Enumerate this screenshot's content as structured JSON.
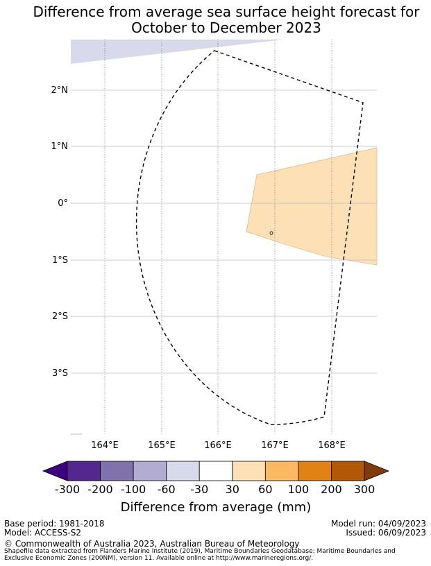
{
  "title": {
    "line1": "Difference from average sea surface height forecast for",
    "line2": "October to December 2023"
  },
  "map": {
    "lat_labels": [
      "2°N",
      "1°N",
      "0°",
      "1°S",
      "2°S",
      "3°S"
    ],
    "lon_labels": [
      "164°E",
      "165°E",
      "166°E",
      "167°E",
      "168°E"
    ]
  },
  "colorbar": {
    "title": "Difference from average (mm)",
    "ticks": [
      "-300",
      "-200",
      "-100",
      "-60",
      "-30",
      "30",
      "60",
      "100",
      "200",
      "300"
    ],
    "colors": [
      "#3f007d",
      "#54278f",
      "#8073ac",
      "#b2abd2",
      "#d8daeb",
      "#ffffff",
      "#fee0b6",
      "#fdb863",
      "#e08214",
      "#b35806",
      "#7f3b08"
    ]
  },
  "footer": {
    "base_period": "Base period: 1981-2018",
    "model": "Model: ACCESS-S2",
    "model_run": "Model run: 04/09/2023",
    "issued": "Issued: 06/09/2023",
    "copyright": "© Commonwealth of Australia 2023, Australian Bureau of Meteorology",
    "shapefile_line1": "Shapefile data extracted from Flanders Marine Institute (2019), Maritime Boundaries Geodatabase: Maritime Boundaries and",
    "shapefile_line2": "Exclusive Economic Zones (200NM), version 11. Available online at http://www.marineregions.org/."
  }
}
